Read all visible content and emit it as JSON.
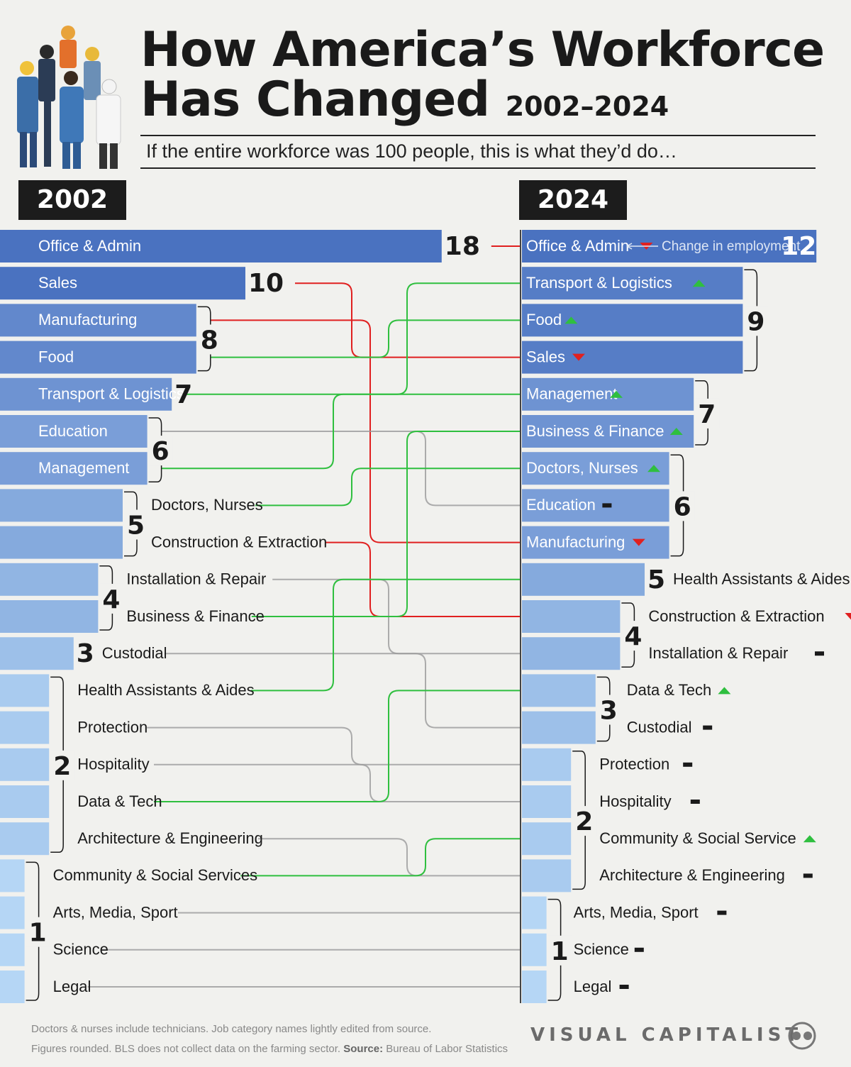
{
  "header": {
    "title_line1": "How America’s Workforce",
    "title_line2": "Has Changed",
    "title_years": "2002–2024",
    "subtitle": "If the entire workforce was 100 people, this is what they’d do…"
  },
  "chart_data": {
    "type": "bar",
    "unit": "people out of 100",
    "left": {
      "year": "2002",
      "rows": [
        {
          "label": "Office & Admin",
          "value": 18
        },
        {
          "label": "Sales",
          "value": 10
        },
        {
          "label": "Manufacturing",
          "value": 8
        },
        {
          "label": "Food",
          "value": 8
        },
        {
          "label": "Transport & Logistics",
          "value": 7
        },
        {
          "label": "Education",
          "value": 6
        },
        {
          "label": "Management",
          "value": 6
        },
        {
          "label": "Doctors, Nurses",
          "value": 5
        },
        {
          "label": "Construction & Extraction",
          "value": 5
        },
        {
          "label": "Installation & Repair",
          "value": 4
        },
        {
          "label": "Business & Finance",
          "value": 4
        },
        {
          "label": "Custodial",
          "value": 3
        },
        {
          "label": "Health Assistants & Aides",
          "value": 2
        },
        {
          "label": "Protection",
          "value": 2
        },
        {
          "label": "Hospitality",
          "value": 2
        },
        {
          "label": "Data & Tech",
          "value": 2
        },
        {
          "label": "Architecture & Engineering",
          "value": 2
        },
        {
          "label": "Community & Social Services",
          "value": 1
        },
        {
          "label": "Arts, Media, Sport",
          "value": 1
        },
        {
          "label": "Science",
          "value": 1
        },
        {
          "label": "Legal",
          "value": 1
        }
      ],
      "groups": [
        {
          "value_label": "18",
          "start": 0,
          "end": 0
        },
        {
          "value_label": "10",
          "start": 1,
          "end": 1
        },
        {
          "value_label": "8",
          "start": 2,
          "end": 3
        },
        {
          "value_label": "7",
          "start": 4,
          "end": 4
        },
        {
          "value_label": "6",
          "start": 5,
          "end": 6
        },
        {
          "value_label": "5",
          "start": 7,
          "end": 8
        },
        {
          "value_label": "4",
          "start": 9,
          "end": 10
        },
        {
          "value_label": "3",
          "start": 11,
          "end": 11
        },
        {
          "value_label": "2",
          "start": 12,
          "end": 16
        },
        {
          "value_label": "1",
          "start": 17,
          "end": 20
        }
      ]
    },
    "right": {
      "year": "2024",
      "rows": [
        {
          "label": "Office & Admin",
          "value": 12,
          "change": "down"
        },
        {
          "label": "Transport & Logistics",
          "value": 9,
          "change": "up"
        },
        {
          "label": "Food",
          "value": 9,
          "change": "up"
        },
        {
          "label": "Sales",
          "value": 9,
          "change": "down"
        },
        {
          "label": "Management",
          "value": 7,
          "change": "up"
        },
        {
          "label": "Business & Finance",
          "value": 7,
          "change": "up"
        },
        {
          "label": "Doctors, Nurses",
          "value": 6,
          "change": "up"
        },
        {
          "label": "Education",
          "value": 6,
          "change": "same"
        },
        {
          "label": "Manufacturing",
          "value": 6,
          "change": "down"
        },
        {
          "label": "Health Assistants & Aides",
          "value": 5,
          "change": "up"
        },
        {
          "label": "Construction & Extraction",
          "value": 4,
          "change": "down"
        },
        {
          "label": "Installation & Repair",
          "value": 4,
          "change": "same"
        },
        {
          "label": "Data & Tech",
          "value": 3,
          "change": "up"
        },
        {
          "label": "Custodial",
          "value": 3,
          "change": "same"
        },
        {
          "label": "Protection",
          "value": 2,
          "change": "same"
        },
        {
          "label": "Hospitality",
          "value": 2,
          "change": "same"
        },
        {
          "label": "Community & Social Service",
          "value": 2,
          "change": "up"
        },
        {
          "label": "Architecture & Engineering",
          "value": 2,
          "change": "same"
        },
        {
          "label": "Arts, Media, Sport",
          "value": 1,
          "change": "same"
        },
        {
          "label": "Science",
          "value": 1,
          "change": "same"
        },
        {
          "label": "Legal",
          "value": 1,
          "change": "same"
        }
      ],
      "groups": [
        {
          "value_label": "12",
          "start": 0,
          "end": 0
        },
        {
          "value_label": "9",
          "start": 1,
          "end": 3
        },
        {
          "value_label": "7",
          "start": 4,
          "end": 5
        },
        {
          "value_label": "6",
          "start": 6,
          "end": 8
        },
        {
          "value_label": "5",
          "start": 9,
          "end": 9
        },
        {
          "value_label": "4",
          "start": 10,
          "end": 11
        },
        {
          "value_label": "3",
          "start": 12,
          "end": 13
        },
        {
          "value_label": "2",
          "start": 14,
          "end": 17
        },
        {
          "value_label": "1",
          "start": 18,
          "end": 20
        }
      ],
      "change_legend": "Change in employment"
    },
    "links": [
      {
        "from": 0,
        "to": 0,
        "change": "down"
      },
      {
        "from": 1,
        "to": 3,
        "change": "down"
      },
      {
        "from": 2,
        "to": 8,
        "change": "down"
      },
      {
        "from": 3,
        "to": 2,
        "change": "up"
      },
      {
        "from": 4,
        "to": 1,
        "change": "up"
      },
      {
        "from": 5,
        "to": 7,
        "change": "same"
      },
      {
        "from": 6,
        "to": 4,
        "change": "up"
      },
      {
        "from": 7,
        "to": 6,
        "change": "up"
      },
      {
        "from": 8,
        "to": 10,
        "change": "down"
      },
      {
        "from": 9,
        "to": 11,
        "change": "same"
      },
      {
        "from": 10,
        "to": 5,
        "change": "up"
      },
      {
        "from": 11,
        "to": 13,
        "change": "same"
      },
      {
        "from": 12,
        "to": 9,
        "change": "up"
      },
      {
        "from": 13,
        "to": 14,
        "change": "same"
      },
      {
        "from": 14,
        "to": 15,
        "change": "same"
      },
      {
        "from": 15,
        "to": 12,
        "change": "up"
      },
      {
        "from": 16,
        "to": 17,
        "change": "same"
      },
      {
        "from": 17,
        "to": 16,
        "change": "up"
      },
      {
        "from": 18,
        "to": 18,
        "change": "same"
      },
      {
        "from": 19,
        "to": 19,
        "change": "same"
      },
      {
        "from": 20,
        "to": 20,
        "change": "same"
      }
    ]
  },
  "colors": {
    "bar_dark": "#4a72c0",
    "bar_light": "#b5d6f5",
    "up": "#2fbf3f",
    "down": "#e02020",
    "same": "#9a9a9a",
    "text": "#1a1a1a",
    "background": "#f1f1ee"
  },
  "footer": {
    "note_line1": "Doctors & nurses include technicians. Job category names lightly edited from source.",
    "note_line2": "Figures rounded. BLS does not collect data on the farming sector.",
    "source_label": "Source:",
    "source_value": "Bureau of Labor Statistics",
    "brand": "VISUAL CAPITALIST",
    "brand_icon": "visual-capitalist-logo-icon"
  }
}
